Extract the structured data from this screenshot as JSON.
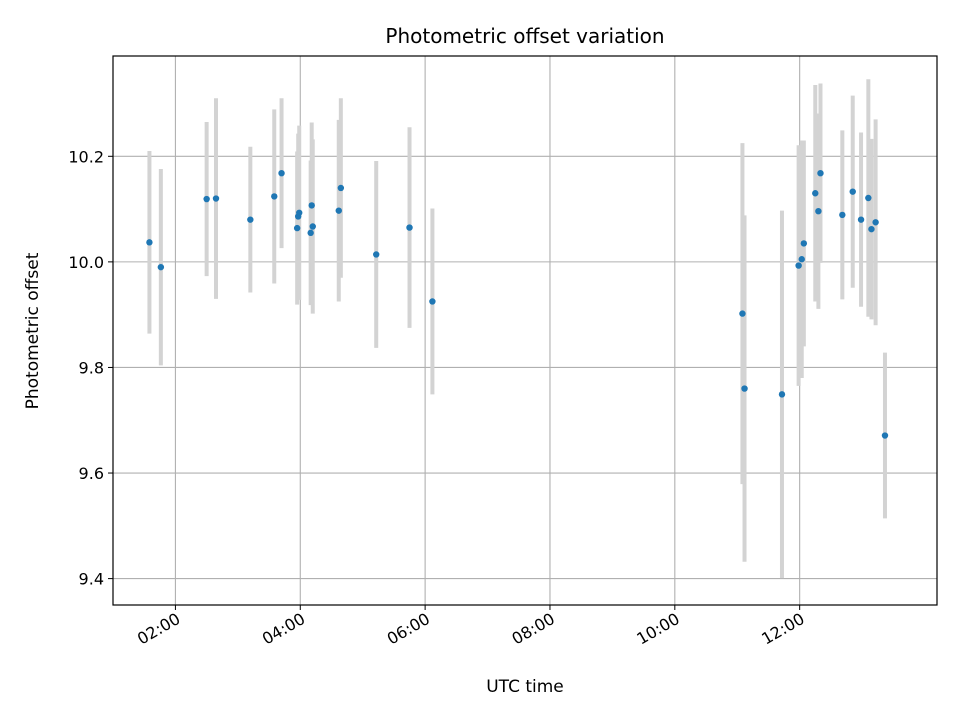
{
  "chart_data": {
    "type": "scatter",
    "title": "Photometric offset variation",
    "xlabel": "UTC time",
    "ylabel": "Photometric offset",
    "x_unit": "UTC hours",
    "xlim": [
      "01:00",
      "14:12"
    ],
    "ylim": [
      9.35,
      10.39
    ],
    "x_ticks": [
      "02:00",
      "04:00",
      "06:00",
      "08:00",
      "10:00",
      "12:00"
    ],
    "y_ticks": [
      "9.4",
      "9.6",
      "9.8",
      "10.0",
      "10.2"
    ],
    "grid": true,
    "colors": {
      "point": "#1f77b4",
      "errorbar": "#d3d3d3",
      "grid": "#b0b0b0"
    },
    "series": [
      {
        "points": [
          {
            "t": "01:35",
            "y": 10.037,
            "err": 0.173
          },
          {
            "t": "01:46",
            "y": 9.99,
            "err": 0.186
          },
          {
            "t": "02:30",
            "y": 10.119,
            "err": 0.146
          },
          {
            "t": "02:39",
            "y": 10.12,
            "err": 0.19
          },
          {
            "t": "03:12",
            "y": 10.08,
            "err": 0.138
          },
          {
            "t": "03:35",
            "y": 10.124,
            "err": 0.165
          },
          {
            "t": "03:42",
            "y": 10.168,
            "err": 0.142
          },
          {
            "t": "03:57",
            "y": 10.064,
            "err": 0.145
          },
          {
            "t": "03:58",
            "y": 10.086,
            "err": 0.157
          },
          {
            "t": "03:59",
            "y": 10.093,
            "err": 0.165
          },
          {
            "t": "04:10",
            "y": 10.055,
            "err": 0.137
          },
          {
            "t": "04:11",
            "y": 10.107,
            "err": 0.157
          },
          {
            "t": "04:12",
            "y": 10.067,
            "err": 0.165
          },
          {
            "t": "04:37",
            "y": 10.097,
            "err": 0.172
          },
          {
            "t": "04:39",
            "y": 10.14,
            "err": 0.17
          },
          {
            "t": "05:13",
            "y": 10.014,
            "err": 0.177
          },
          {
            "t": "05:45",
            "y": 10.065,
            "err": 0.19
          },
          {
            "t": "06:07",
            "y": 9.925,
            "err": 0.176
          },
          {
            "t": "11:05",
            "y": 9.902,
            "err": 0.323
          },
          {
            "t": "11:07",
            "y": 9.76,
            "err": 0.328
          },
          {
            "t": "11:43",
            "y": 9.749,
            "err": 0.348
          },
          {
            "t": "11:59",
            "y": 9.993,
            "err": 0.228
          },
          {
            "t": "12:02",
            "y": 10.005,
            "err": 0.225
          },
          {
            "t": "12:04",
            "y": 10.035,
            "err": 0.195
          },
          {
            "t": "12:15",
            "y": 10.13,
            "err": 0.205
          },
          {
            "t": "12:18",
            "y": 10.096,
            "err": 0.185
          },
          {
            "t": "12:20",
            "y": 10.168,
            "err": 0.17
          },
          {
            "t": "12:41",
            "y": 10.089,
            "err": 0.16
          },
          {
            "t": "12:51",
            "y": 10.133,
            "err": 0.182
          },
          {
            "t": "12:59",
            "y": 10.08,
            "err": 0.165
          },
          {
            "t": "13:06",
            "y": 10.121,
            "err": 0.225
          },
          {
            "t": "13:09",
            "y": 10.062,
            "err": 0.171
          },
          {
            "t": "13:13",
            "y": 10.075,
            "err": 0.195
          },
          {
            "t": "13:22",
            "y": 9.671,
            "err": 0.157
          }
        ]
      }
    ]
  }
}
